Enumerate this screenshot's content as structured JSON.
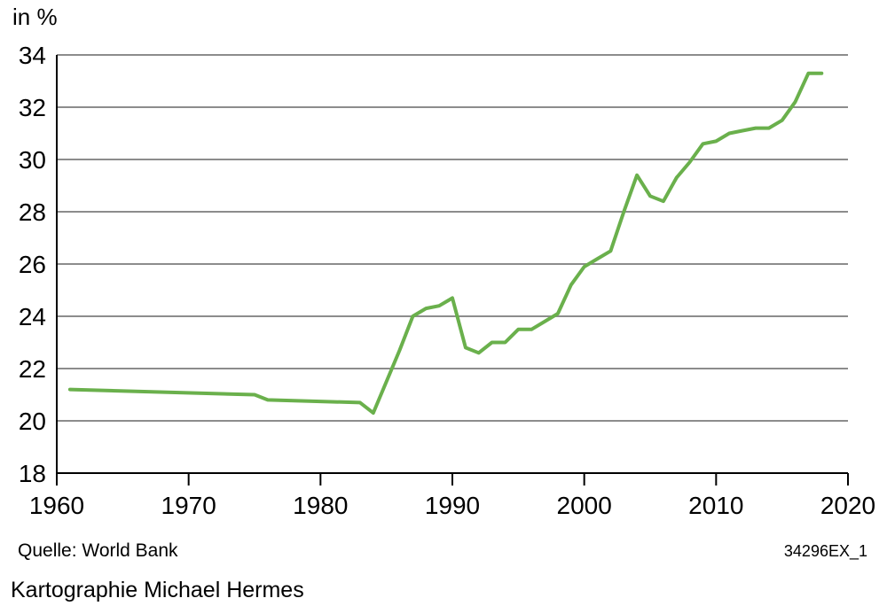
{
  "chart_data": {
    "type": "line",
    "title": "",
    "ylabel": "in %",
    "xlabel": "",
    "xlim": [
      1960,
      2020
    ],
    "ylim": [
      18,
      34
    ],
    "xticks": [
      1960,
      1970,
      1980,
      1990,
      2000,
      2010,
      2020
    ],
    "yticks": [
      18,
      20,
      22,
      24,
      26,
      28,
      30,
      32,
      34
    ],
    "grid": "horizontal",
    "color": "#6ab04c",
    "series": [
      {
        "x": [
          1961,
          1975,
          1976,
          1983,
          1984,
          1986,
          1987,
          1988,
          1989,
          1990,
          1991,
          1992,
          1993,
          1994,
          1995,
          1996,
          1997,
          1998,
          1999,
          2000,
          2001,
          2002,
          2003,
          2004,
          2005,
          2006,
          2007,
          2008,
          2009,
          2010,
          2011,
          2012,
          2013,
          2014,
          2015,
          2016,
          2017,
          2018
        ],
        "values": [
          21.2,
          21.0,
          20.8,
          20.7,
          20.3,
          22.7,
          24.0,
          24.3,
          24.4,
          24.7,
          22.8,
          22.6,
          23.0,
          23.0,
          23.5,
          23.5,
          23.8,
          24.1,
          25.2,
          25.9,
          26.2,
          26.5,
          28.0,
          29.4,
          28.6,
          28.4,
          29.3,
          29.9,
          30.6,
          30.7,
          31.0,
          31.1,
          31.2,
          31.2,
          31.5,
          32.2,
          33.3,
          33.3
        ]
      }
    ]
  },
  "footer": {
    "source": "Quelle: World Bank",
    "code": "34296EX_1",
    "credit": "Kartographie Michael Hermes"
  }
}
